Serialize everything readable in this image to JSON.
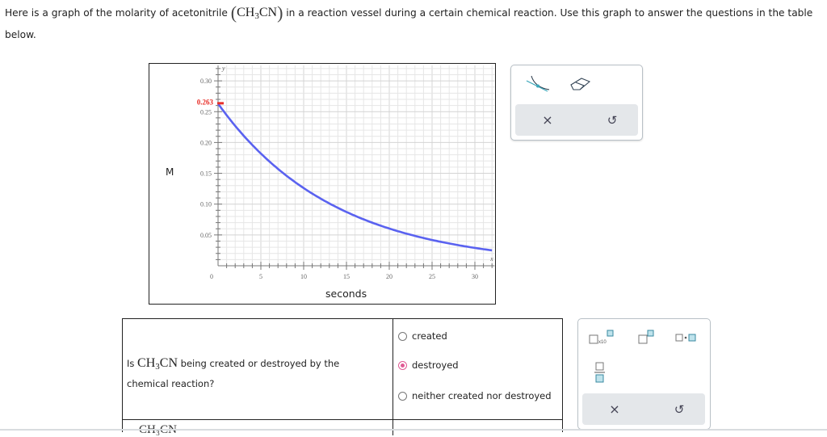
{
  "intro": {
    "text_before": "Here is a graph of the molarity of acetonitrile",
    "formula_main": "CH",
    "formula_sub": "3",
    "formula_end": "CN",
    "text_after": "in a reaction vessel during a certain chemical reaction. Use this graph to answer the questions in the table below."
  },
  "graph": {
    "ylabel": "M",
    "xlabel": "seconds",
    "y_axis_var": "y",
    "x_axis_var": "x",
    "highlight_label": "0.263",
    "highlight_color": "#e8302a",
    "curve_color": "#5a62f0",
    "y_ticks": [
      "0.30",
      "0.25",
      "0.20",
      "0.15",
      "0.10",
      "0.05"
    ],
    "x_ticks": [
      "0",
      "5",
      "10",
      "15",
      "20",
      "25",
      "30"
    ]
  },
  "chart_data": {
    "type": "line",
    "title": "",
    "xlabel": "seconds",
    "ylabel": "M",
    "xlim": [
      0,
      32
    ],
    "ylim": [
      0,
      0.32
    ],
    "grid": true,
    "annotations": [
      {
        "x": 0,
        "y": 0.263,
        "label": "0.263",
        "color": "#e8302a"
      }
    ],
    "series": [
      {
        "name": "[CH3CN]",
        "x": [
          0,
          2,
          4,
          6,
          8,
          10,
          12,
          14,
          16,
          18,
          20,
          22,
          24,
          26,
          28,
          30,
          32
        ],
        "values": [
          0.263,
          0.227,
          0.197,
          0.17,
          0.147,
          0.127,
          0.11,
          0.095,
          0.082,
          0.071,
          0.061,
          0.053,
          0.046,
          0.039,
          0.034,
          0.029,
          0.025
        ]
      }
    ]
  },
  "graph_tools": {
    "draw_curve": "curve-tool",
    "eraser": "eraser-tool",
    "clear": "×",
    "undo": "↺"
  },
  "question": {
    "prefix": "Is",
    "formula_main": "CH",
    "formula_sub": "3",
    "formula_end": "CN",
    "suffix": "being created or destroyed by the chemical reaction?",
    "options": [
      {
        "label": "created",
        "selected": false
      },
      {
        "label": "destroyed",
        "selected": true
      },
      {
        "label": "neither created nor destroyed",
        "selected": false
      }
    ],
    "next_row_partial": "CH₃CN"
  },
  "answer_tools": {
    "sci_notation": "x10",
    "clear": "×",
    "undo": "↺"
  }
}
